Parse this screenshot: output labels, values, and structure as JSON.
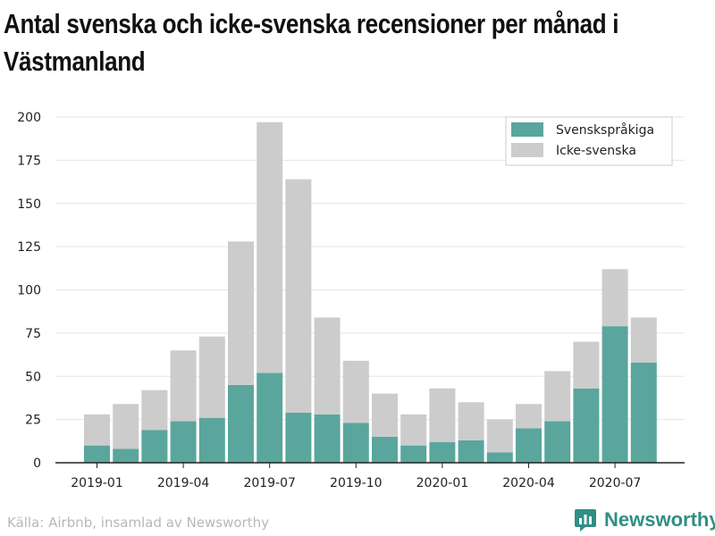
{
  "title_lines": [
    "Antal svenska och icke-svenska recensioner per månad i",
    "Västmanland"
  ],
  "source": "Källa: Airbnb, insamlad av Newsworthy",
  "brand": {
    "name": "Newsworthy",
    "icon": "bar-chart-logo-icon"
  },
  "colors": {
    "swedish": "#5aa69c",
    "non_swedish": "#cccccc",
    "axis": "#222222",
    "grid": "#e5e5e5"
  },
  "chart_data": {
    "type": "bar",
    "stacked": true,
    "categories": [
      "2019-01",
      "2019-02",
      "2019-03",
      "2019-04",
      "2019-05",
      "2019-06",
      "2019-07",
      "2019-08",
      "2019-09",
      "2019-10",
      "2019-11",
      "2019-12",
      "2020-01",
      "2020-02",
      "2020-03",
      "2020-04",
      "2020-05",
      "2020-06",
      "2020-07",
      "2020-08"
    ],
    "x_tick_labels": [
      "2019-01",
      "2019-04",
      "2019-07",
      "2019-10",
      "2020-01",
      "2020-04",
      "2020-07"
    ],
    "series": [
      {
        "name": "Svenskspråkiga",
        "color": "#5aa69c",
        "values": [
          10,
          8,
          19,
          24,
          26,
          45,
          52,
          29,
          28,
          23,
          15,
          10,
          12,
          13,
          6,
          20,
          24,
          43,
          79,
          58
        ]
      },
      {
        "name": "Icke-svenska",
        "color": "#cccccc",
        "values": [
          18,
          26,
          23,
          41,
          47,
          83,
          145,
          135,
          56,
          36,
          25,
          18,
          31,
          22,
          19,
          14,
          29,
          27,
          33,
          26
        ]
      }
    ],
    "ylim": [
      0,
      200
    ],
    "y_ticks": [
      0,
      25,
      50,
      75,
      100,
      125,
      150,
      175,
      200
    ],
    "xlabel": "",
    "ylabel": "",
    "grid": true,
    "legend_position": "top-right"
  }
}
